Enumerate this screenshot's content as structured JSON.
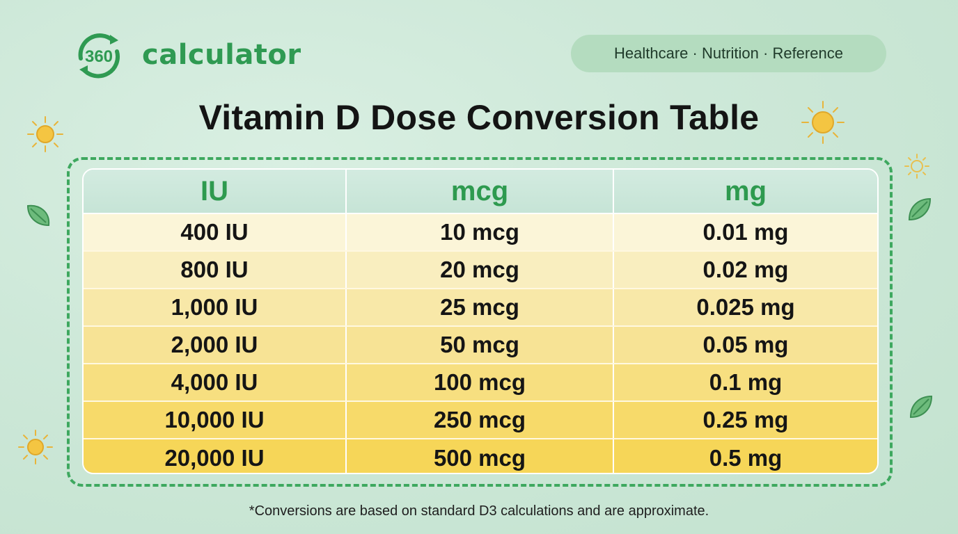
{
  "brand": {
    "logo_mark": "360",
    "name": "calculator"
  },
  "tags": "Healthcare · Nutrition · Reference",
  "title": "Vitamin D Dose Conversion Table",
  "table": {
    "headers": [
      "IU",
      "mcg",
      "mg"
    ],
    "rows": [
      [
        "400 IU",
        "10 mcg",
        "0.01 mg"
      ],
      [
        "800 IU",
        "20 mcg",
        "0.02 mg"
      ],
      [
        "1,000 IU",
        "25 mcg",
        "0.025 mg"
      ],
      [
        "2,000 IU",
        "50 mcg",
        "0.05 mg"
      ],
      [
        "4,000 IU",
        "100 mcg",
        "0.1 mg"
      ],
      [
        "10,000 IU",
        "250 mcg",
        "0.25 mg"
      ],
      [
        "20,000 IU",
        "500 mcg",
        "0.5 mg"
      ]
    ],
    "row_colors": [
      "#fbf5d8",
      "#f9eebf",
      "#f8e8a8",
      "#f7e395",
      "#f7df80",
      "#f7da6a",
      "#f6d658"
    ]
  },
  "footnote": "*Conversions are based on standard D3 calculations and are approximate.",
  "colors": {
    "brand_green": "#2f9a52",
    "frame_green": "#3ea85f",
    "sun": "#f4c542"
  },
  "icons": [
    "logo-360-icon",
    "sun-icon",
    "leaf-icon"
  ]
}
